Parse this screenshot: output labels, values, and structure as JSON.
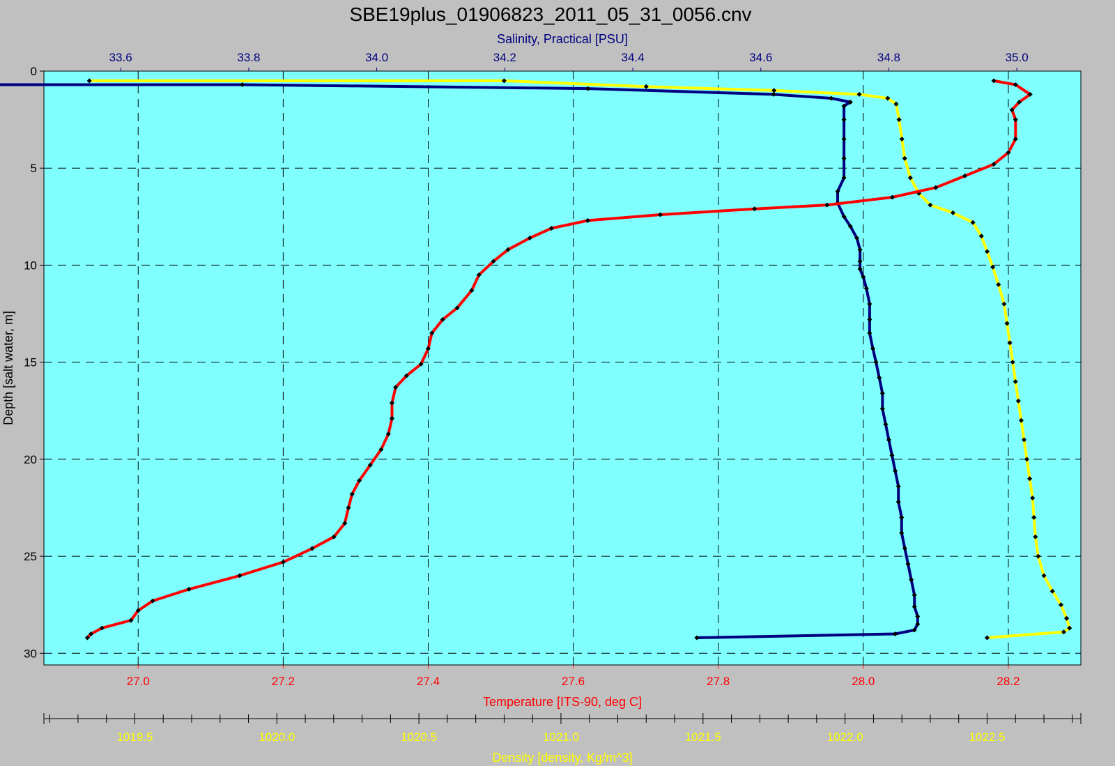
{
  "chart_data": {
    "type": "line",
    "title": "SBE19plus_01906823_2011_05_31_0056.cnv",
    "colors": {
      "background": "#c0c0c0",
      "plot_background": "#80ffff",
      "salinity": "#000080",
      "temperature": "#ff0000",
      "density": "#ffff00",
      "marker": "#000000",
      "grid": "#000000"
    },
    "grid": true,
    "y_axis": {
      "label": "Depth [salt water, m]",
      "lim": [
        30.6,
        0
      ],
      "ticks": [
        0,
        5,
        10,
        15,
        20,
        25,
        30
      ]
    },
    "x_axes": {
      "salinity": {
        "label": "Salinity, Practical [PSU]",
        "position": "top",
        "lim": [
          33.48,
          35.1
        ],
        "ticks": [
          33.6,
          33.8,
          34.0,
          34.2,
          34.4,
          34.6,
          34.8,
          35.0
        ],
        "tick_labels": [
          "33.6",
          "33.8",
          "34.0",
          "34.2",
          "34.4",
          "34.6",
          "34.8",
          "35.0"
        ]
      },
      "temperature": {
        "label": "Temperature [ITS-90, deg C]",
        "position": "bottom",
        "lim": [
          26.87,
          28.3
        ],
        "ticks": [
          27.0,
          27.2,
          27.4,
          27.6,
          27.8,
          28.0,
          28.2
        ],
        "tick_labels": [
          "27.0",
          "27.2",
          "27.4",
          "27.6",
          "27.8",
          "28.0",
          "28.2"
        ]
      },
      "density": {
        "label": "Density [density, Kg/m^3]",
        "position": "bottom-offset",
        "lim": [
          1019.18,
          1022.83
        ],
        "ticks": [
          1019.5,
          1020.0,
          1020.5,
          1021.0,
          1021.5,
          1022.0,
          1022.5
        ],
        "tick_labels": [
          "1019.5",
          "1020.0",
          "1020.5",
          "1021.0",
          "1021.5",
          "1022.0",
          "1022.5"
        ],
        "minor_step": 0.1
      }
    },
    "series": [
      {
        "name": "Salinity, Practical [PSU]",
        "axis": "salinity",
        "points": [
          [
            33.4,
            0.7
          ],
          [
            33.79,
            0.7
          ],
          [
            34.33,
            0.9
          ],
          [
            34.62,
            1.2
          ],
          [
            34.71,
            1.4
          ],
          [
            34.74,
            1.6
          ],
          [
            34.73,
            1.8
          ],
          [
            34.73,
            2.5
          ],
          [
            34.73,
            3.5
          ],
          [
            34.73,
            4.5
          ],
          [
            34.73,
            5.5
          ],
          [
            34.72,
            6.2
          ],
          [
            34.72,
            6.8
          ],
          [
            34.73,
            7.5
          ],
          [
            34.74,
            8.0
          ],
          [
            34.75,
            8.6
          ],
          [
            34.755,
            9.2
          ],
          [
            34.755,
            9.8
          ],
          [
            34.755,
            10.2
          ],
          [
            34.76,
            10.6
          ],
          [
            34.765,
            11.2
          ],
          [
            34.77,
            12.0
          ],
          [
            34.77,
            12.8
          ],
          [
            34.77,
            13.5
          ],
          [
            34.775,
            14.3
          ],
          [
            34.78,
            15.0
          ],
          [
            34.785,
            15.8
          ],
          [
            34.79,
            16.6
          ],
          [
            34.79,
            17.4
          ],
          [
            34.795,
            18.2
          ],
          [
            34.8,
            19.0
          ],
          [
            34.805,
            19.8
          ],
          [
            34.81,
            20.6
          ],
          [
            34.815,
            21.4
          ],
          [
            34.815,
            22.2
          ],
          [
            34.82,
            23.0
          ],
          [
            34.82,
            23.8
          ],
          [
            34.825,
            24.6
          ],
          [
            34.83,
            25.4
          ],
          [
            34.835,
            26.2
          ],
          [
            34.84,
            27.0
          ],
          [
            34.84,
            27.6
          ],
          [
            34.845,
            28.1
          ],
          [
            34.845,
            28.5
          ],
          [
            34.84,
            28.8
          ],
          [
            34.81,
            29.0
          ],
          [
            34.5,
            29.2
          ]
        ]
      },
      {
        "name": "Temperature [ITS-90, deg C]",
        "axis": "temperature",
        "points": [
          [
            28.18,
            0.5
          ],
          [
            28.21,
            0.7
          ],
          [
            28.23,
            1.2
          ],
          [
            28.215,
            1.6
          ],
          [
            28.205,
            2.0
          ],
          [
            28.21,
            2.5
          ],
          [
            28.21,
            3.5
          ],
          [
            28.2,
            4.2
          ],
          [
            28.18,
            4.8
          ],
          [
            28.14,
            5.4
          ],
          [
            28.1,
            6.0
          ],
          [
            28.04,
            6.5
          ],
          [
            27.95,
            6.9
          ],
          [
            27.85,
            7.1
          ],
          [
            27.72,
            7.4
          ],
          [
            27.62,
            7.7
          ],
          [
            27.57,
            8.1
          ],
          [
            27.54,
            8.6
          ],
          [
            27.51,
            9.2
          ],
          [
            27.49,
            9.8
          ],
          [
            27.47,
            10.5
          ],
          [
            27.46,
            11.3
          ],
          [
            27.44,
            12.2
          ],
          [
            27.42,
            12.8
          ],
          [
            27.405,
            13.5
          ],
          [
            27.4,
            14.3
          ],
          [
            27.39,
            15.1
          ],
          [
            27.37,
            15.7
          ],
          [
            27.355,
            16.3
          ],
          [
            27.35,
            17.1
          ],
          [
            27.35,
            17.9
          ],
          [
            27.345,
            18.7
          ],
          [
            27.335,
            19.5
          ],
          [
            27.32,
            20.3
          ],
          [
            27.305,
            21.1
          ],
          [
            27.295,
            21.8
          ],
          [
            27.29,
            22.5
          ],
          [
            27.285,
            23.3
          ],
          [
            27.27,
            24.0
          ],
          [
            27.24,
            24.6
          ],
          [
            27.2,
            25.3
          ],
          [
            27.14,
            26.0
          ],
          [
            27.07,
            26.7
          ],
          [
            27.02,
            27.3
          ],
          [
            27.0,
            27.8
          ],
          [
            26.99,
            28.3
          ],
          [
            26.95,
            28.7
          ],
          [
            26.935,
            29.0
          ],
          [
            26.93,
            29.2
          ]
        ]
      },
      {
        "name": "Density [density, Kg/m^3]",
        "axis": "density",
        "points": [
          [
            1019.34,
            0.5
          ],
          [
            1020.8,
            0.5
          ],
          [
            1021.3,
            0.8
          ],
          [
            1021.75,
            1.0
          ],
          [
            1022.05,
            1.2
          ],
          [
            1022.15,
            1.4
          ],
          [
            1022.18,
            1.7
          ],
          [
            1022.19,
            2.5
          ],
          [
            1022.2,
            3.5
          ],
          [
            1022.21,
            4.5
          ],
          [
            1022.23,
            5.5
          ],
          [
            1022.26,
            6.3
          ],
          [
            1022.3,
            6.9
          ],
          [
            1022.38,
            7.3
          ],
          [
            1022.45,
            7.8
          ],
          [
            1022.48,
            8.5
          ],
          [
            1022.5,
            9.3
          ],
          [
            1022.52,
            10.1
          ],
          [
            1022.54,
            11.0
          ],
          [
            1022.56,
            12.0
          ],
          [
            1022.57,
            13.0
          ],
          [
            1022.58,
            14.0
          ],
          [
            1022.59,
            15.0
          ],
          [
            1022.6,
            16.0
          ],
          [
            1022.61,
            17.0
          ],
          [
            1022.62,
            18.0
          ],
          [
            1022.63,
            19.0
          ],
          [
            1022.64,
            20.0
          ],
          [
            1022.65,
            21.0
          ],
          [
            1022.66,
            22.0
          ],
          [
            1022.665,
            23.0
          ],
          [
            1022.67,
            24.0
          ],
          [
            1022.68,
            25.0
          ],
          [
            1022.7,
            26.0
          ],
          [
            1022.73,
            26.8
          ],
          [
            1022.76,
            27.5
          ],
          [
            1022.78,
            28.2
          ],
          [
            1022.79,
            28.7
          ],
          [
            1022.77,
            28.9
          ],
          [
            1022.5,
            29.2
          ]
        ]
      }
    ]
  }
}
